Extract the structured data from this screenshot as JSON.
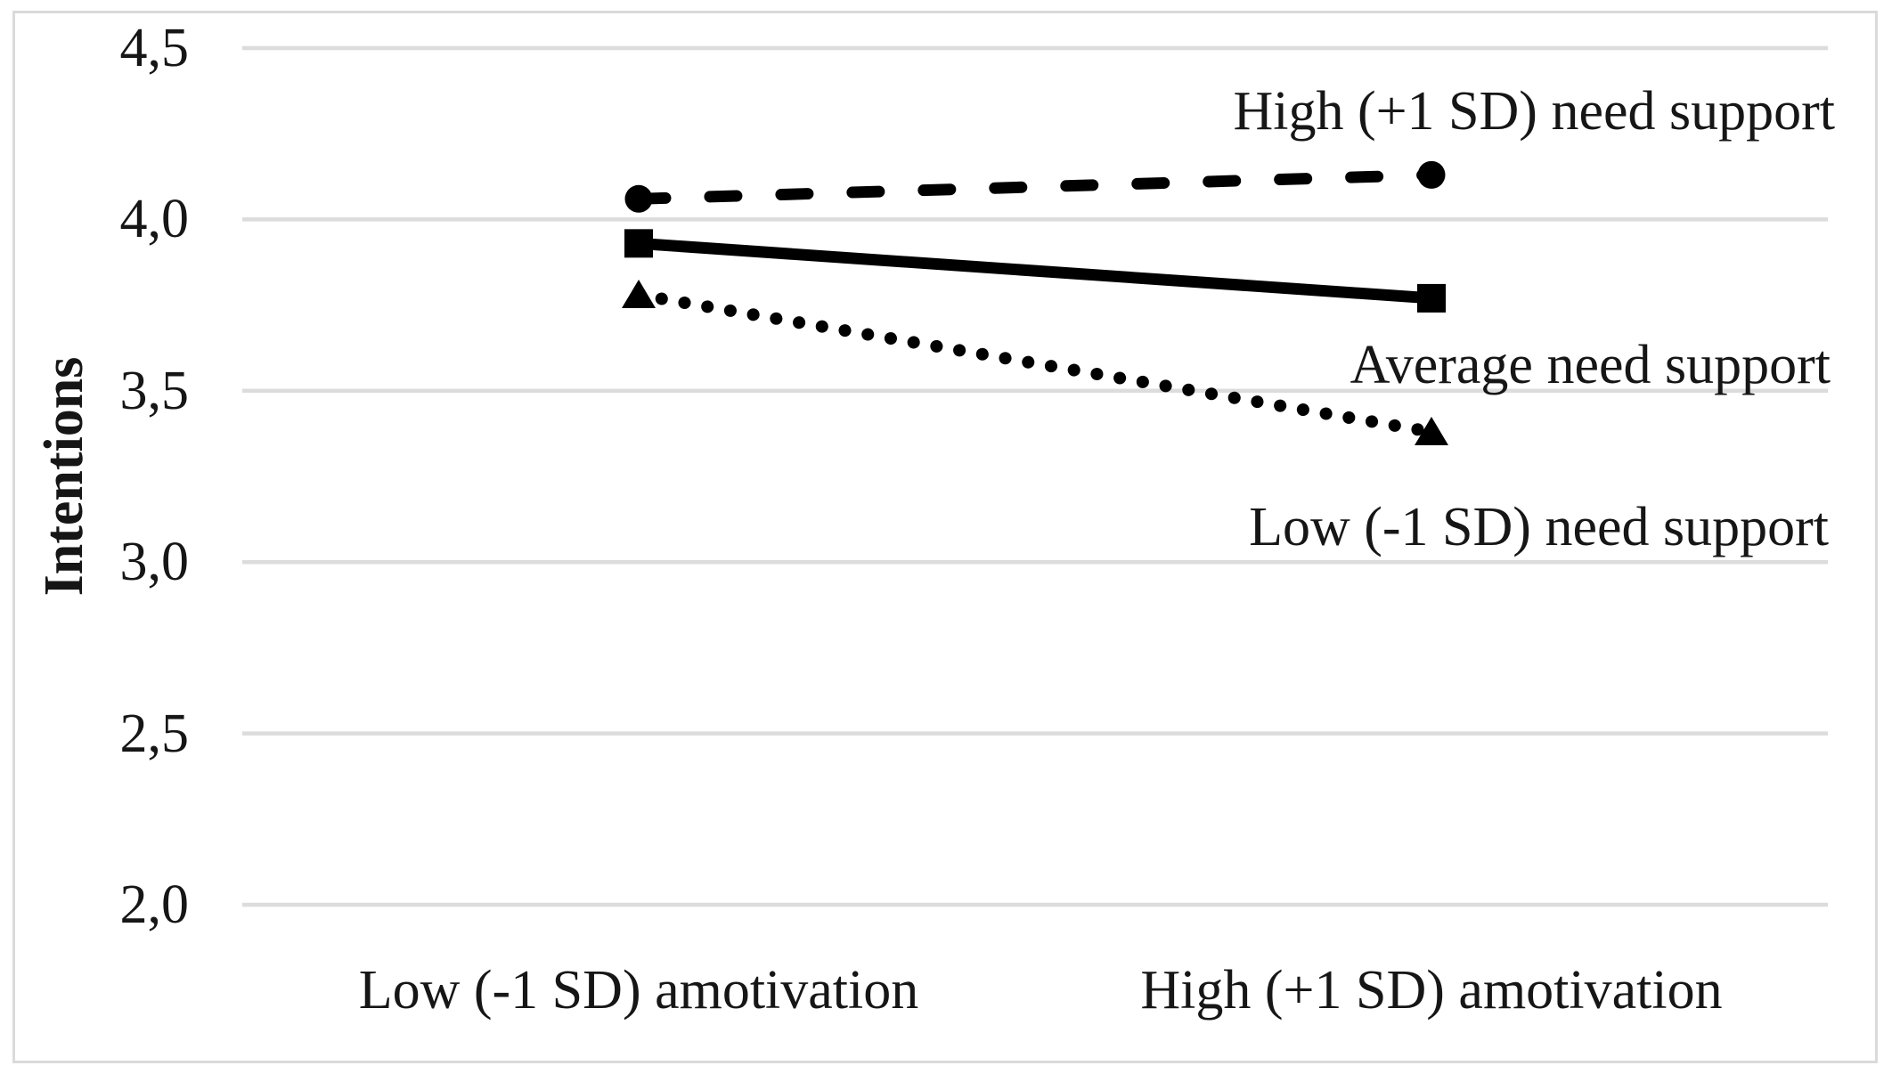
{
  "chart_data": {
    "type": "line",
    "title": "",
    "xlabel": "",
    "ylabel": "Intentions",
    "categories": [
      "Low (-1 SD) amotivation",
      "High (+1 SD) amotivation"
    ],
    "series": [
      {
        "name": "High (+1 SD) need support",
        "values": [
          4.06,
          4.13
        ],
        "line_style": "dashed",
        "marker": "circle",
        "color": "#000000"
      },
      {
        "name": "Average need support",
        "values": [
          3.93,
          3.77
        ],
        "line_style": "solid",
        "marker": "square",
        "color": "#000000"
      },
      {
        "name": "Low (-1 SD) need support",
        "values": [
          3.78,
          3.38
        ],
        "line_style": "dotted",
        "marker": "triangle",
        "color": "#000000"
      }
    ],
    "y_ticks": [
      {
        "label": "4,5",
        "value": 4.5
      },
      {
        "label": "4,0",
        "value": 4.0
      },
      {
        "label": "3,5",
        "value": 3.5
      },
      {
        "label": "3,0",
        "value": 3.0
      },
      {
        "label": "2,5",
        "value": 2.5
      },
      {
        "label": "2,0",
        "value": 2.0
      }
    ],
    "ylim": [
      2.0,
      4.5
    ],
    "decimal_separator": ",",
    "grid": true,
    "legend_position": "inline-annotations-right",
    "colors": {
      "series_line": "#000000",
      "gridline": "#dcdcdc",
      "chart_border": "#dadada",
      "text": "#161616",
      "background": "#ffffff"
    }
  }
}
